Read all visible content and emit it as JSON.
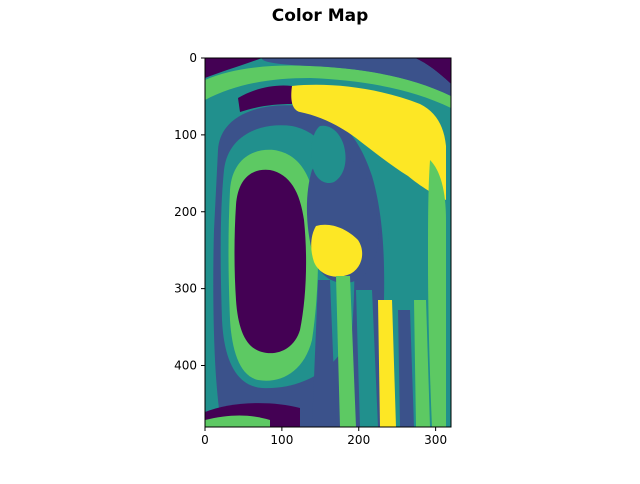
{
  "chart_data": {
    "type": "heatmap",
    "title": "Color Map",
    "xlabel": "",
    "ylabel": "",
    "xlim": [
      0,
      320
    ],
    "ylim": [
      480,
      0
    ],
    "x_ticks": [
      "0",
      "100",
      "200",
      "300"
    ],
    "y_ticks": [
      "0",
      "100",
      "200",
      "300",
      "400"
    ],
    "colormap": "viridis",
    "levels": 5,
    "colors": {
      "level_0": "#440154",
      "level_1": "#3b528b",
      "level_2": "#21908d",
      "level_3": "#5dc963",
      "level_4": "#fde725"
    },
    "grid": false,
    "legend": "none"
  }
}
